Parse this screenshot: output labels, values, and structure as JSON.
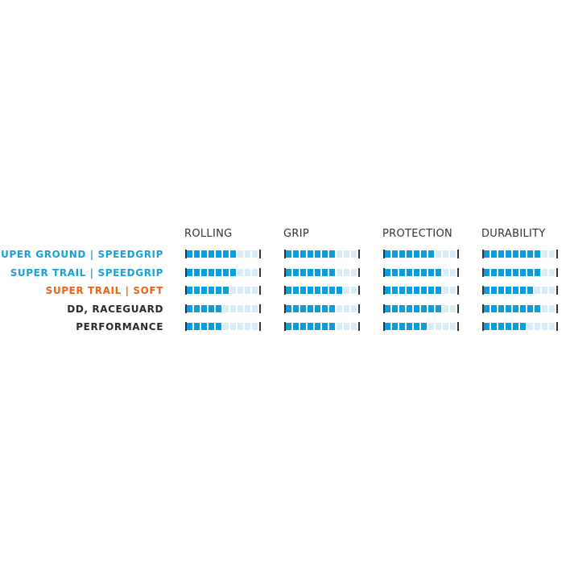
{
  "chart_data": {
    "type": "table",
    "scale_max": 10,
    "categories": [
      "ROLLING",
      "GRIP",
      "PROTECTION",
      "DURABILITY"
    ],
    "rows": [
      {
        "name": "SUPER GROUND | SPEEDGRIP",
        "color": "#1aa0dc",
        "values": [
          7,
          7,
          7,
          8
        ]
      },
      {
        "name": "SUPER TRAIL | SPEEDGRIP",
        "color": "#1aa0dc",
        "values": [
          7,
          7,
          8,
          8
        ]
      },
      {
        "name": "SUPER TRAIL | SOFT",
        "color": "#e8651a",
        "values": [
          6,
          8,
          8,
          7
        ]
      },
      {
        "name": "DD, RACEGUARD",
        "color": "#2a2a2a",
        "values": [
          5,
          7,
          8,
          8
        ]
      },
      {
        "name": "PERFORMANCE",
        "color": "#2a2a2a",
        "values": [
          5,
          7,
          6,
          6
        ]
      }
    ],
    "colors": {
      "filled": "#0a9ee0",
      "empty": "#d8ecf8",
      "tick": "#333333"
    }
  }
}
